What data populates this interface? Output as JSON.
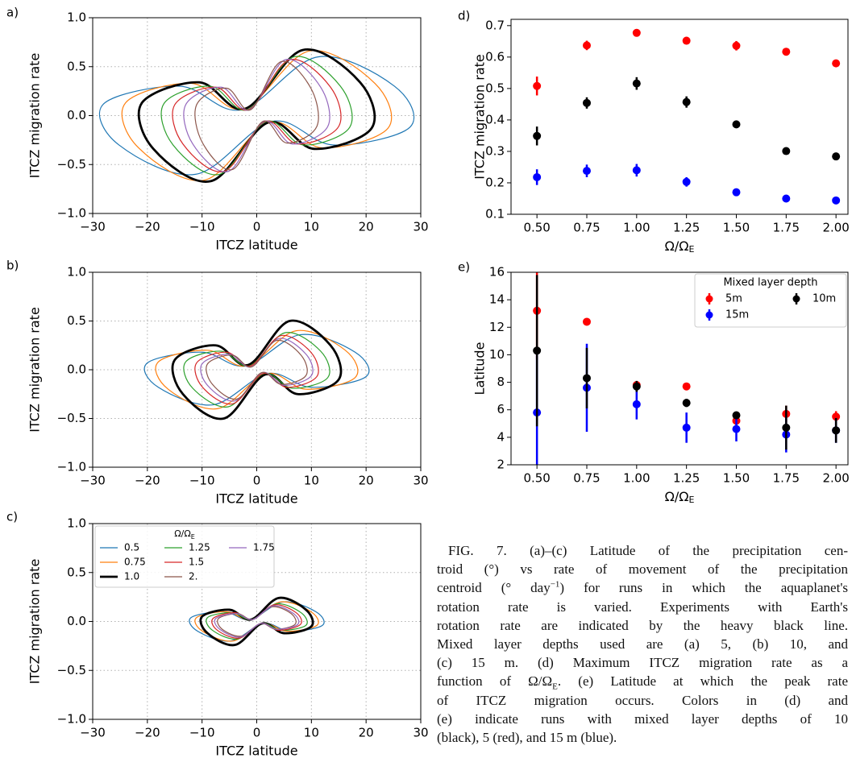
{
  "chart_data": [
    {
      "type": "loop",
      "panel_label": "a)",
      "xlabel": "ITCZ latitude",
      "ylabel": "ITCZ migration rate",
      "xlim": [
        -30,
        30
      ],
      "ylim": [
        -1,
        1
      ],
      "grid": true,
      "xticks": [
        {
          "value": -30,
          "label": "−30"
        },
        {
          "value": -20,
          "label": "−20"
        },
        {
          "value": -10,
          "label": "−10"
        },
        0,
        10,
        20,
        30
      ],
      "yticks": [
        {
          "value": -1,
          "label": "−1.0"
        },
        {
          "value": -0.5,
          "label": "−0.5"
        },
        {
          "value": 0,
          "label": "0.0"
        },
        {
          "value": 0.5,
          "label": "0.5"
        },
        {
          "value": 1,
          "label": "1.0"
        }
      ],
      "series": [
        {
          "color": "#1f77b4",
          "linewidth": 1.2,
          "x": [
            -28,
            -14,
            -2.8,
            11.2,
            25.2,
            28,
            14,
            2.8,
            -11.2,
            -25.2
          ],
          "y": [
            0.12,
            0.3,
            0.06,
            0.6,
            0.3,
            -0.12,
            -0.3,
            -0.06,
            -0.6,
            -0.3
          ]
        },
        {
          "color": "#ff7f0e",
          "linewidth": 1.2,
          "x": [
            -24,
            -12,
            -2.4,
            9.6,
            21.6,
            24,
            12,
            2.4,
            -9.6,
            -21.6
          ],
          "y": [
            0.13,
            0.33,
            0.07,
            0.66,
            0.33,
            -0.13,
            -0.33,
            -0.07,
            -0.66,
            -0.33
          ]
        },
        {
          "color": "#000000",
          "linewidth": 2.8,
          "x": [
            -21,
            -10.5,
            -2.1,
            8.4,
            18.9,
            21,
            10.5,
            2.1,
            -8.4,
            -18.9
          ],
          "y": [
            0.13,
            0.34,
            0.07,
            0.67,
            0.34,
            -0.13,
            -0.34,
            -0.07,
            -0.67,
            -0.34
          ]
        },
        {
          "color": "#2ca02c",
          "linewidth": 1.2,
          "x": [
            -17,
            -8.5,
            -1.7,
            6.8,
            15.3,
            17,
            8.5,
            1.7,
            -6.8,
            -15.3
          ],
          "y": [
            0.12,
            0.3,
            0.06,
            0.6,
            0.3,
            -0.12,
            -0.3,
            -0.06,
            -0.6,
            -0.3
          ]
        },
        {
          "color": "#d62728",
          "linewidth": 1.2,
          "x": [
            -15,
            -7.5,
            -1.5,
            6,
            13.5,
            15,
            7.5,
            1.5,
            -6,
            -13.5
          ],
          "y": [
            0.11,
            0.29,
            0.06,
            0.57,
            0.29,
            -0.11,
            -0.29,
            -0.06,
            -0.57,
            -0.29
          ]
        },
        {
          "color": "#9467bd",
          "linewidth": 1.2,
          "x": [
            -13,
            -6.5,
            -1.3,
            5.2,
            11.7,
            13,
            6.5,
            1.3,
            -5.2,
            -11.7
          ],
          "y": [
            0.11,
            0.29,
            0.06,
            0.57,
            0.29,
            -0.11,
            -0.29,
            -0.06,
            -0.57,
            -0.29
          ]
        },
        {
          "color": "#8c564b",
          "linewidth": 1.2,
          "x": [
            -11,
            -5.5,
            -1.1,
            4.4,
            9.9,
            11,
            5.5,
            1.1,
            -4.4,
            -9.9
          ],
          "y": [
            0.11,
            0.28,
            0.06,
            0.55,
            0.28,
            -0.11,
            -0.28,
            -0.06,
            -0.55,
            -0.28
          ]
        }
      ]
    },
    {
      "type": "loop",
      "panel_label": "b)",
      "xlabel": "ITCZ latitude",
      "ylabel": "ITCZ migration rate",
      "xlim": [
        -30,
        30
      ],
      "ylim": [
        -1,
        1
      ],
      "grid": true,
      "xticks": [
        {
          "value": -30,
          "label": "−30"
        },
        {
          "value": -20,
          "label": "−20"
        },
        {
          "value": -10,
          "label": "−10"
        },
        0,
        10,
        20,
        30
      ],
      "yticks": [
        {
          "value": -1,
          "label": "−1.0"
        },
        {
          "value": -0.5,
          "label": "−0.5"
        },
        {
          "value": 0,
          "label": "0.0"
        },
        {
          "value": 0.5,
          "label": "0.5"
        },
        {
          "value": 1,
          "label": "1.0"
        }
      ],
      "series": [
        {
          "color": "#1f77b4",
          "linewidth": 1.2,
          "x": [
            -20,
            -10,
            -2,
            8,
            18,
            20,
            10,
            2,
            -8,
            -18
          ],
          "y": [
            0.07,
            0.18,
            0.04,
            0.36,
            0.18,
            -0.07,
            -0.18,
            -0.04,
            -0.36,
            -0.18
          ]
        },
        {
          "color": "#ff7f0e",
          "linewidth": 1.2,
          "x": [
            -18,
            -9,
            -1.8,
            7.2,
            16.2,
            18,
            9,
            1.8,
            -7.2,
            -16.2
          ],
          "y": [
            0.08,
            0.2,
            0.04,
            0.4,
            0.2,
            -0.08,
            -0.2,
            -0.04,
            -0.4,
            -0.2
          ]
        },
        {
          "color": "#000000",
          "linewidth": 2.8,
          "x": [
            -15,
            -7.5,
            -1.5,
            6,
            13.5,
            15,
            7.5,
            1.5,
            -6,
            -13.5
          ],
          "y": [
            0.1,
            0.25,
            0.05,
            0.5,
            0.25,
            -0.1,
            -0.25,
            -0.05,
            -0.5,
            -0.25
          ]
        },
        {
          "color": "#2ca02c",
          "linewidth": 1.2,
          "x": [
            -13,
            -6.5,
            -1.3,
            5.2,
            11.7,
            13,
            6.5,
            1.3,
            -5.2,
            -11.7
          ],
          "y": [
            0.08,
            0.19,
            0.04,
            0.38,
            0.19,
            -0.08,
            -0.19,
            -0.04,
            -0.38,
            -0.19
          ]
        },
        {
          "color": "#d62728",
          "linewidth": 1.2,
          "x": [
            -11,
            -5.5,
            -1.1,
            4.4,
            9.9,
            11,
            5.5,
            1.1,
            -4.4,
            -9.9
          ],
          "y": [
            0.07,
            0.18,
            0.04,
            0.35,
            0.18,
            -0.07,
            -0.18,
            -0.04,
            -0.35,
            -0.18
          ]
        },
        {
          "color": "#9467bd",
          "linewidth": 1.2,
          "x": [
            -10,
            -5,
            -1,
            4,
            9,
            10,
            5,
            1,
            -4,
            -9
          ],
          "y": [
            0.06,
            0.16,
            0.03,
            0.32,
            0.16,
            -0.06,
            -0.16,
            -0.03,
            -0.32,
            -0.16
          ]
        },
        {
          "color": "#8c564b",
          "linewidth": 1.2,
          "x": [
            -9,
            -4.5,
            -0.9,
            3.6,
            8.1,
            9,
            4.5,
            0.9,
            -3.6,
            -8.1
          ],
          "y": [
            0.06,
            0.15,
            0.03,
            0.3,
            0.15,
            -0.06,
            -0.15,
            -0.03,
            -0.3,
            -0.15
          ]
        }
      ]
    },
    {
      "type": "loop",
      "panel_label": "c)",
      "xlabel": "ITCZ latitude",
      "ylabel": "ITCZ migration rate",
      "xlim": [
        -30,
        30
      ],
      "ylim": [
        -1,
        1
      ],
      "grid": true,
      "legend": true,
      "legend_loc": "upper left",
      "legend_title": [
        "Ω/Ω",
        "E"
      ],
      "xticks": [
        {
          "value": -30,
          "label": "−30"
        },
        {
          "value": -20,
          "label": "−20"
        },
        {
          "value": -10,
          "label": "−10"
        },
        0,
        10,
        20,
        30
      ],
      "yticks": [
        {
          "value": -1,
          "label": "−1.0"
        },
        {
          "value": -0.5,
          "label": "−0.5"
        },
        {
          "value": 0,
          "label": "0.0"
        },
        {
          "value": 0.5,
          "label": "0.5"
        },
        {
          "value": 1,
          "label": "1.0"
        }
      ],
      "series": [
        {
          "name": "0.5",
          "color": "#1f77b4",
          "linewidth": 1.2,
          "x": [
            -12,
            -6,
            -1.2,
            4.8,
            10.8,
            12,
            6,
            1.2,
            -4.8,
            -10.8
          ],
          "y": [
            0.04,
            0.1,
            0.02,
            0.2,
            0.1,
            -0.04,
            -0.1,
            -0.02,
            -0.2,
            -0.1
          ]
        },
        {
          "name": "0.75",
          "color": "#ff7f0e",
          "linewidth": 1.2,
          "x": [
            -11,
            -5.5,
            -1.1,
            4.4,
            9.9,
            11,
            5.5,
            1.1,
            -4.4,
            -9.9
          ],
          "y": [
            0.04,
            0.1,
            0.02,
            0.2,
            0.1,
            -0.04,
            -0.1,
            -0.02,
            -0.2,
            -0.1
          ]
        },
        {
          "name": "1.0",
          "color": "#000000",
          "linewidth": 2.8,
          "x": [
            -10,
            -5,
            -1,
            4,
            9,
            10,
            5,
            1,
            -4,
            -9
          ],
          "y": [
            0.05,
            0.12,
            0.02,
            0.24,
            0.12,
            -0.05,
            -0.12,
            -0.02,
            -0.24,
            -0.12
          ]
        },
        {
          "name": "1.25",
          "color": "#2ca02c",
          "linewidth": 1.2,
          "x": [
            -9,
            -4.5,
            -0.9,
            3.6,
            8.1,
            9,
            4.5,
            0.9,
            -3.6,
            -8.1
          ],
          "y": [
            0.04,
            0.09,
            0.02,
            0.18,
            0.09,
            -0.04,
            -0.09,
            -0.02,
            -0.18,
            -0.09
          ]
        },
        {
          "name": "1.5",
          "color": "#d62728",
          "linewidth": 1.2,
          "x": [
            -8,
            -4,
            -0.8,
            3.2,
            7.2,
            8,
            4,
            0.8,
            -3.2,
            -7.2
          ],
          "y": [
            0.03,
            0.09,
            0.02,
            0.17,
            0.09,
            -0.03,
            -0.09,
            -0.02,
            -0.17,
            -0.09
          ]
        },
        {
          "name": "2.",
          "color": "#8c564b",
          "linewidth": 1.2,
          "x": [
            -7,
            -3.5,
            -0.7,
            2.8,
            6.3,
            7,
            3.5,
            0.7,
            -2.8,
            -6.3
          ],
          "y": [
            0.03,
            0.08,
            0.02,
            0.15,
            0.08,
            -0.03,
            -0.08,
            -0.02,
            -0.15,
            -0.08
          ]
        },
        {
          "name": "1.75",
          "color": "#9467bd",
          "linewidth": 1.2,
          "x": [
            -7.5,
            -3.75,
            -0.75,
            3,
            6.75,
            7.5,
            3.75,
            0.75,
            -3,
            -6.75
          ],
          "y": [
            0.03,
            0.08,
            0.02,
            0.16,
            0.08,
            -0.03,
            -0.08,
            -0.02,
            -0.16,
            -0.08
          ]
        }
      ]
    },
    {
      "type": "errorbar_scatter",
      "panel_label": "d)",
      "xlabel": [
        "Ω/Ω",
        "E"
      ],
      "ylabel": "ITCZ migration rate",
      "x": [
        0.5,
        0.75,
        1.0,
        1.25,
        1.5,
        1.75,
        2.0
      ],
      "xlim": [
        0.37,
        2.06
      ],
      "ylim": [
        0.1,
        0.72
      ],
      "grid": false,
      "xticks": [
        {
          "value": 0.5,
          "label": "0.50"
        },
        {
          "value": 0.75,
          "label": "0.75"
        },
        {
          "value": 1,
          "label": "1.00"
        },
        {
          "value": 1.25,
          "label": "1.25"
        },
        {
          "value": 1.5,
          "label": "1.50"
        },
        {
          "value": 1.75,
          "label": "1.75"
        },
        {
          "value": 2,
          "label": "2.00"
        }
      ],
      "yticks": [
        0.1,
        0.2,
        0.3,
        0.4,
        0.5,
        0.6,
        0.7
      ],
      "series": [
        {
          "color": "#ff0000",
          "values": [
            0.508,
            0.637,
            0.677,
            0.652,
            0.636,
            0.617,
            0.58
          ],
          "errors": [
            0.03,
            0.015,
            0.012,
            0.012,
            0.015,
            0.01,
            0.012
          ]
        },
        {
          "color": "#000000",
          "values": [
            0.349,
            0.454,
            0.516,
            0.457,
            0.386,
            0.301,
            0.284
          ],
          "errors": [
            0.03,
            0.018,
            0.02,
            0.018,
            0.012,
            0.01,
            0.01
          ]
        },
        {
          "color": "#0000ff",
          "values": [
            0.218,
            0.238,
            0.24,
            0.203,
            0.17,
            0.15,
            0.144
          ],
          "errors": [
            0.025,
            0.02,
            0.02,
            0.015,
            0.012,
            0.01,
            0.008
          ]
        }
      ]
    },
    {
      "type": "errorbar_scatter",
      "panel_label": "e)",
      "xlabel": [
        "Ω/Ω",
        "E"
      ],
      "ylabel": "Latitude",
      "x": [
        0.5,
        0.75,
        1.0,
        1.25,
        1.5,
        1.75,
        2.0
      ],
      "xlim": [
        0.37,
        2.06
      ],
      "ylim": [
        2,
        16
      ],
      "grid": false,
      "legend": true,
      "legend_loc": "upper right",
      "legend_title": "Mixed layer depth",
      "xticks": [
        {
          "value": 0.5,
          "label": "0.50"
        },
        {
          "value": 0.75,
          "label": "0.75"
        },
        {
          "value": 1,
          "label": "1.00"
        },
        {
          "value": 1.25,
          "label": "1.25"
        },
        {
          "value": 1.5,
          "label": "1.50"
        },
        {
          "value": 1.75,
          "label": "1.75"
        },
        {
          "value": 2,
          "label": "2.00"
        }
      ],
      "yticks": [
        2,
        4,
        6,
        8,
        10,
        12,
        14,
        16
      ],
      "series": [
        {
          "name": "5m",
          "color": "#ff0000",
          "values": [
            13.2,
            12.4,
            7.8,
            7.7,
            5.2,
            5.7,
            5.5
          ],
          "errors": [
            3.5,
            0.2,
            0.2,
            0.2,
            0.3,
            0.6,
            0.4
          ]
        },
        {
          "name": "15m",
          "color": "#0000ff",
          "values": [
            5.8,
            7.6,
            6.4,
            4.7,
            4.6,
            4.2,
            4.5
          ],
          "errors": [
            4.5,
            3.2,
            1.1,
            1.1,
            0.9,
            1.3,
            0.9
          ]
        },
        {
          "name": "10m",
          "color": "#000000",
          "values": [
            10.3,
            8.3,
            7.7,
            6.5,
            5.6,
            4.7,
            4.5
          ],
          "errors": [
            5.5,
            2.2,
            0.4,
            0.3,
            0.2,
            1.6,
            0.9
          ]
        }
      ]
    }
  ],
  "caption": [
    [
      "FIG. 7. (a)–(c) Latitude of the precipitation cen-"
    ],
    [
      "troid (°) vs rate of movement of the precipitation"
    ],
    [
      "centroid (° day",
      {
        "sup": "−1"
      },
      ") for runs in which the aquaplanet's"
    ],
    [
      "rotation rate is varied. Experiments with Earth's"
    ],
    [
      "rotation rate are indicated by the heavy black line."
    ],
    [
      "Mixed layer depths used are (a) 5, (b) 10, and"
    ],
    [
      "(c) 15 m. (d) Maximum ITCZ migration rate as a"
    ],
    [
      "function of Ω/Ω",
      {
        "sub": "E"
      },
      ". (e) Latitude at which the peak rate"
    ],
    [
      "of ITCZ migration occurs. Colors in (d) and"
    ],
    [
      "(e) indicate runs with mixed layer depths of 10"
    ],
    [
      "(black), 5 (red), and 15 m (blue)."
    ]
  ]
}
